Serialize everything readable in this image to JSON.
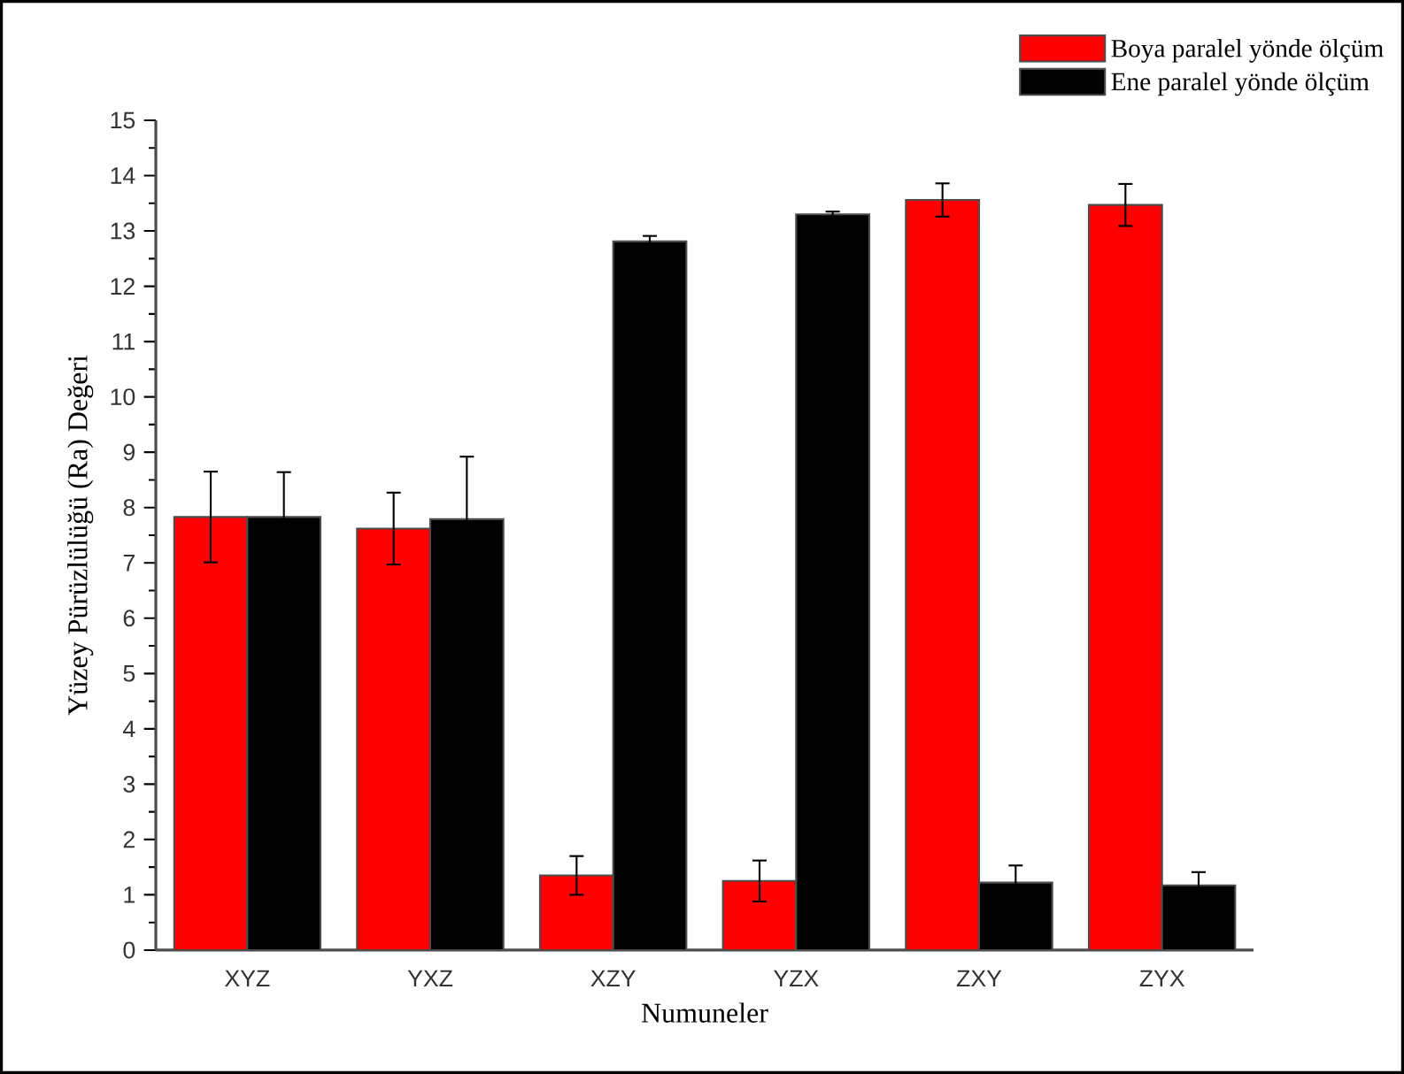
{
  "chart_data": {
    "type": "bar",
    "xlabel": "Numuneler",
    "ylabel": "Yüzey Pürüzlülüğü (Ra) Değeri",
    "categories": [
      "XYZ",
      "YXZ",
      "XZY",
      "YZX",
      "ZXY",
      "ZYX"
    ],
    "series": [
      {
        "name": "Boya paralel yönde ölçüm",
        "color": "#ff0000",
        "values": [
          7.83,
          7.62,
          1.35,
          1.25,
          13.56,
          13.47
        ],
        "errors": [
          0.82,
          0.65,
          0.35,
          0.37,
          0.3,
          0.38
        ]
      },
      {
        "name": "Ene paralel yönde ölçüm",
        "color": "#000000",
        "values": [
          7.83,
          7.79,
          12.81,
          13.3,
          1.22,
          1.17
        ],
        "errors": [
          0.81,
          1.13,
          0.1,
          0.05,
          0.31,
          0.24
        ]
      }
    ],
    "ylim": [
      0,
      15
    ],
    "yticks": [
      0,
      1,
      2,
      3,
      4,
      5,
      6,
      7,
      8,
      9,
      10,
      11,
      12,
      13,
      14,
      15
    ],
    "legend": "top right"
  }
}
